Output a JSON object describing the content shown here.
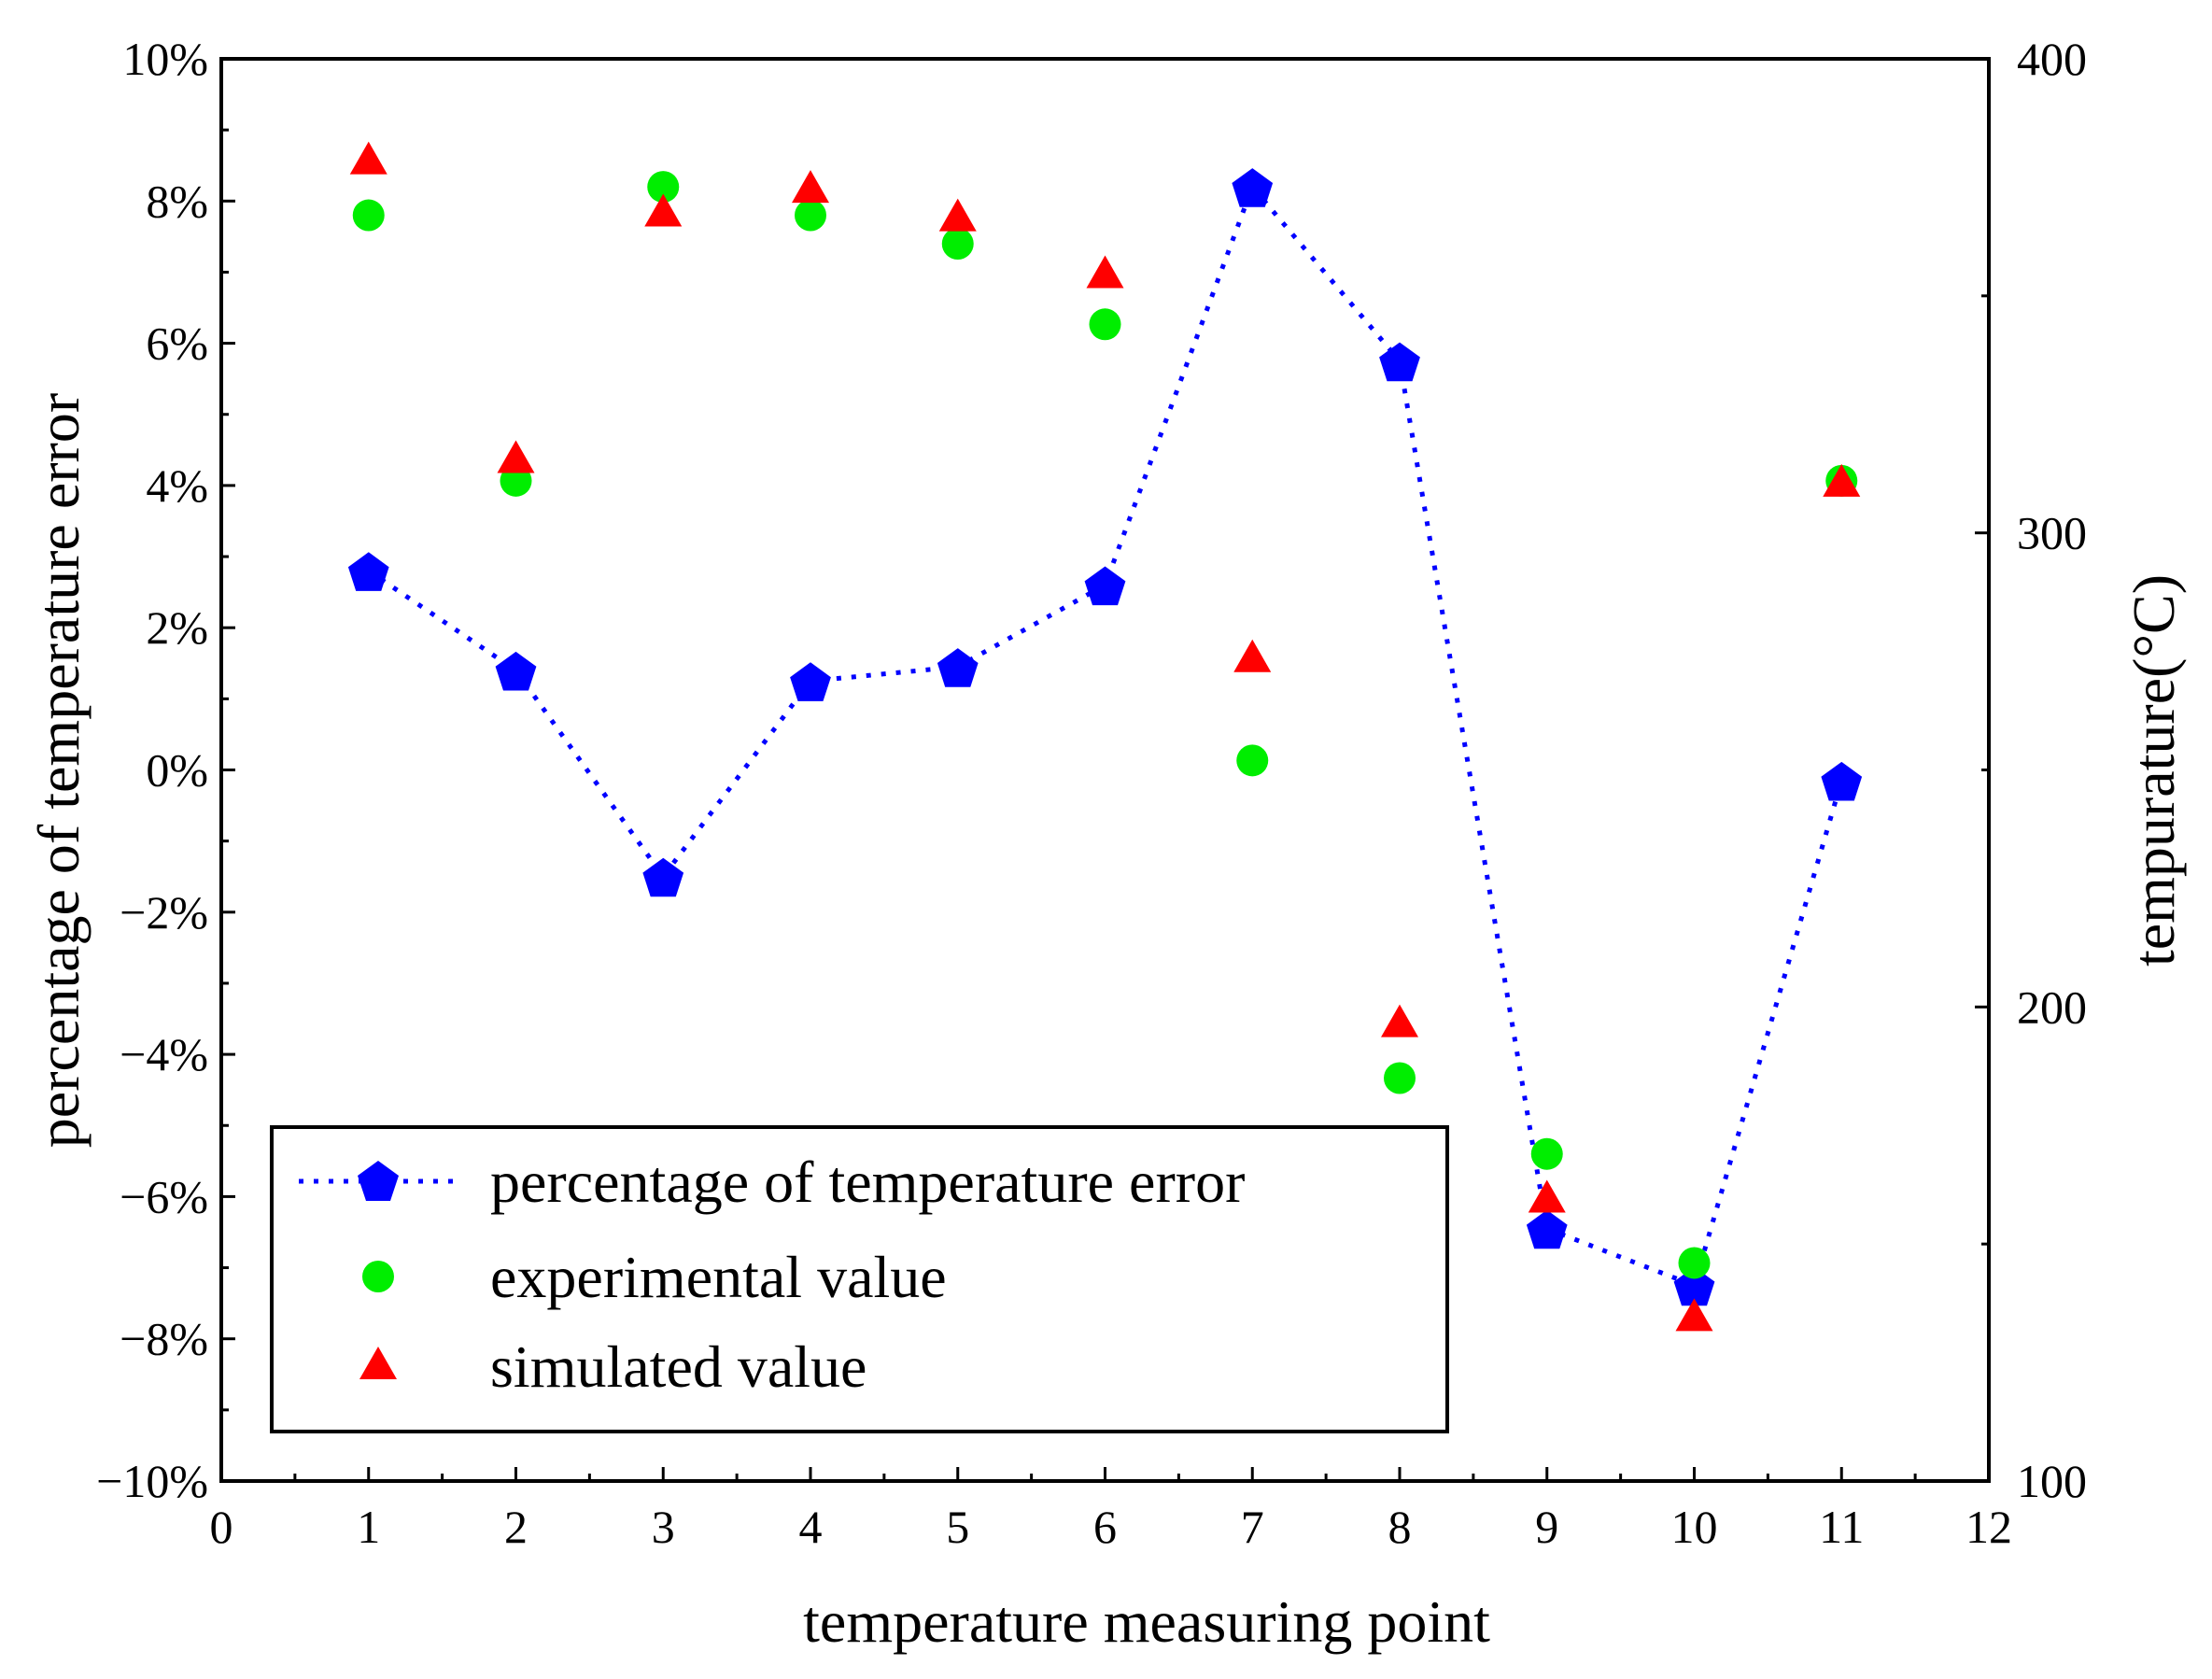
{
  "chart_data": {
    "type": "scatter",
    "title": "",
    "xlabel": "temperature measuring point",
    "ylabel_left": "percentage of temperature error",
    "ylabel_right": "tempurature(°C)",
    "xlim": [
      0,
      12
    ],
    "ylim_left": [
      -10,
      10
    ],
    "ylim_right": [
      100,
      400
    ],
    "x_ticks": [
      0,
      1,
      2,
      3,
      4,
      5,
      6,
      7,
      8,
      9,
      10,
      11,
      12
    ],
    "x_tick_labels": [
      "0",
      "1",
      "2",
      "3",
      "4",
      "5",
      "6",
      "7",
      "8",
      "9",
      "10",
      "11",
      "12"
    ],
    "y_left_ticks": [
      -10,
      -8,
      -6,
      -4,
      -2,
      0,
      2,
      4,
      6,
      8,
      10
    ],
    "y_left_tick_labels": [
      "−10%",
      "−8%",
      "−6%",
      "−4%",
      "−2%",
      "0%",
      "2%",
      "4%",
      "6%",
      "8%",
      "10%"
    ],
    "y_right_ticks": [
      100,
      200,
      300,
      400
    ],
    "y_right_tick_labels": [
      "100",
      "200",
      "300",
      "400"
    ],
    "x": [
      1,
      2,
      3,
      4,
      5,
      6,
      7,
      8,
      9,
      10,
      11
    ],
    "series": [
      {
        "name": "percentage of temperature error",
        "axis": "left",
        "marker": "pentagon",
        "line": "dotted",
        "color": "#0000ff",
        "values": [
          2.8,
          1.4,
          -1.5,
          1.25,
          1.45,
          2.6,
          8.2,
          5.75,
          -6.45,
          -7.25,
          -0.15
        ]
      },
      {
        "name": "experimental value",
        "axis": "right",
        "marker": "circle",
        "line": "none",
        "color": "#00ee00",
        "values": [
          367,
          311,
          373,
          367,
          361,
          344,
          252,
          185,
          169,
          146,
          311
        ]
      },
      {
        "name": "simulated value",
        "axis": "right",
        "marker": "triangle",
        "line": "none",
        "color": "#ff0000",
        "values": [
          378,
          315,
          367,
          372,
          366,
          354,
          273,
          196,
          159,
          134,
          310
        ]
      }
    ],
    "legend": {
      "position": "bottom-left",
      "entries": [
        "percentage of temperature error",
        "experimental value",
        "simulated value"
      ]
    }
  }
}
